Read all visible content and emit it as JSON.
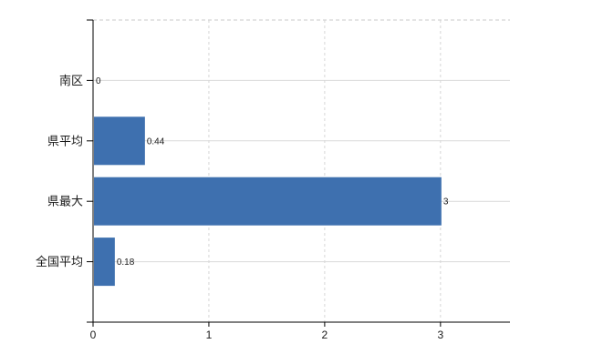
{
  "chart_data": {
    "type": "bar",
    "orientation": "horizontal",
    "categories": [
      "南区",
      "県平均",
      "県最大",
      "全国平均"
    ],
    "values": [
      0,
      0.44,
      3,
      0.18
    ],
    "value_labels": [
      "0",
      "0.44",
      "3",
      "0.18"
    ],
    "x_ticks": [
      0,
      1,
      2,
      3
    ],
    "x_tick_labels": [
      "0",
      "1",
      "2",
      "3"
    ],
    "xlim": [
      0,
      3.6
    ],
    "title": "",
    "xlabel": "",
    "ylabel": "",
    "legend_visible": false,
    "grid": true,
    "colors": {
      "bar": "#3e70af",
      "axis": "#000000",
      "h_gridline": "#d9d9d9",
      "v_gridline": "#d6d6d6",
      "top_border": "#c9c9c9",
      "label_text": "#1a1a1a",
      "background": "#ffffff"
    }
  }
}
